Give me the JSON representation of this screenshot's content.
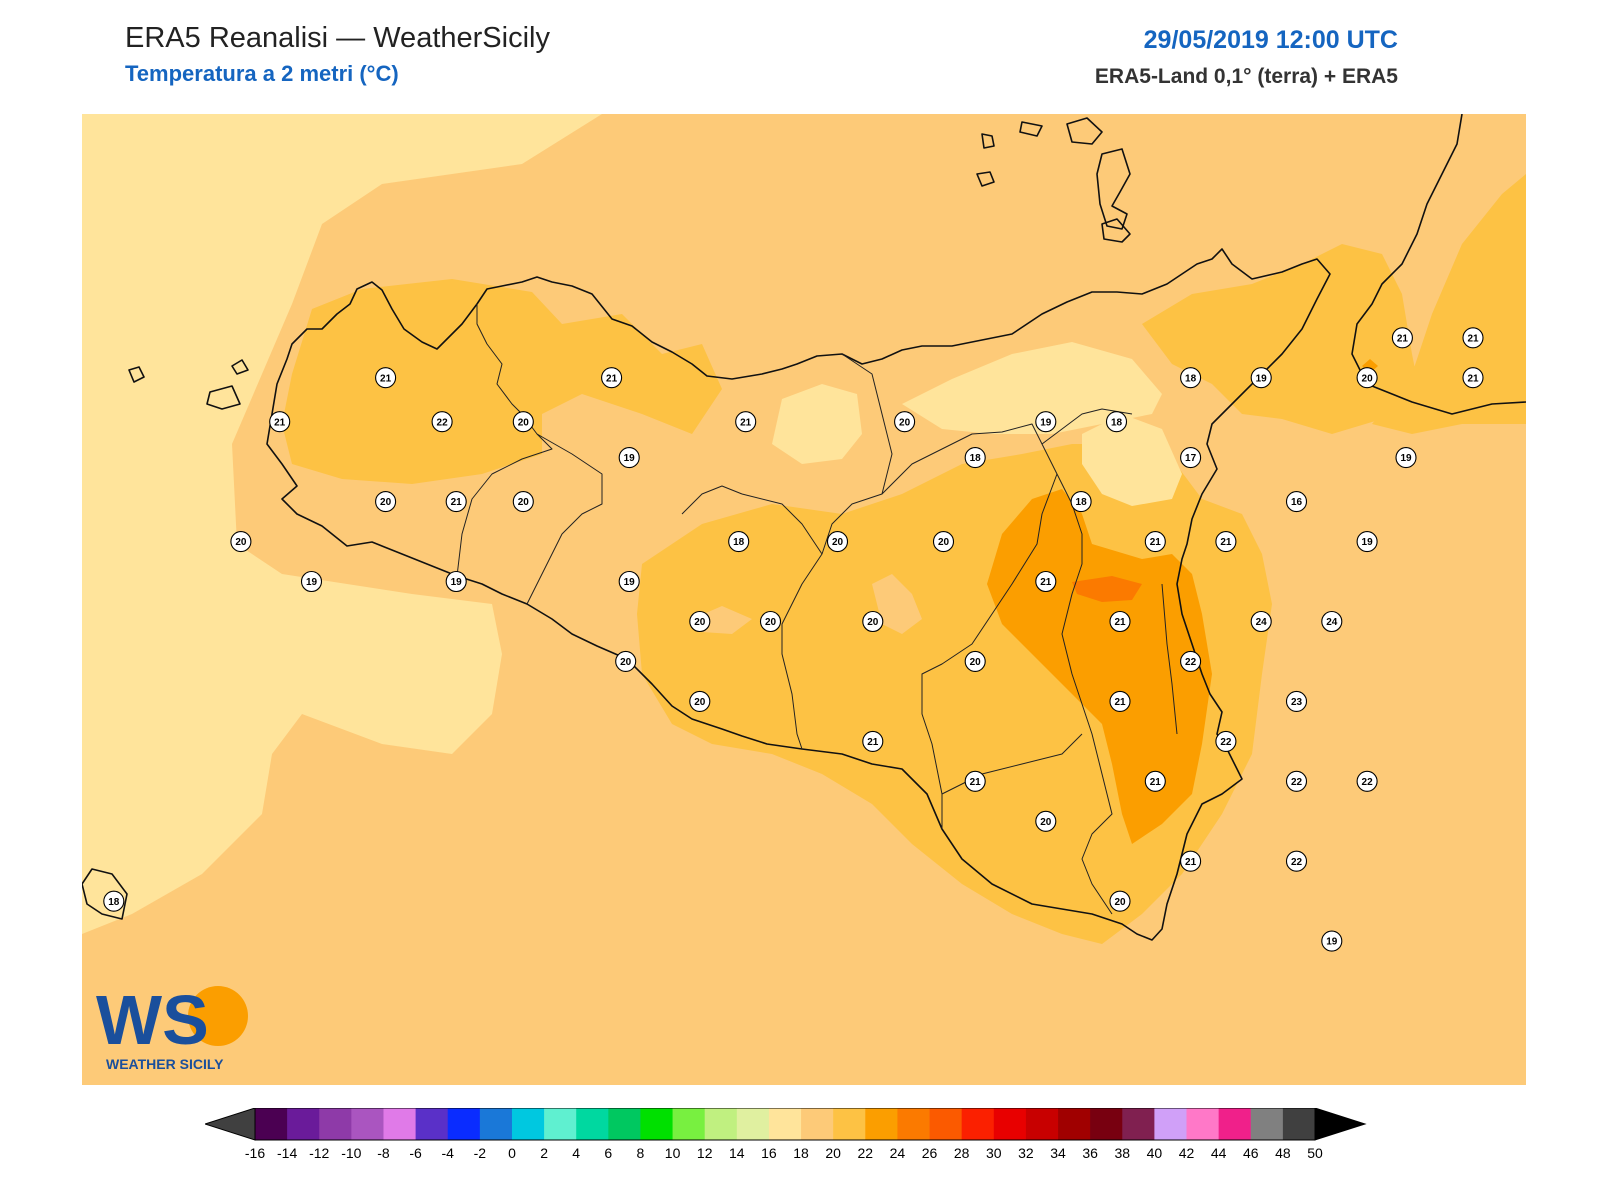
{
  "header": {
    "title": "ERA5 Reanalisi — WeatherSicily",
    "subtitle": "Temperatura a 2 metri (°C)",
    "datetime": "29/05/2019 12:00 UTC",
    "source": "ERA5-Land 0,1° (terra) + ERA5"
  },
  "logo": {
    "letters": "WS",
    "name": "WEATHER SICILY",
    "icon": "sun-wave-logo"
  },
  "colorbar": {
    "ticks": [
      "-16",
      "-14",
      "-12",
      "-10",
      "-8",
      "-6",
      "-4",
      "-2",
      "0",
      "2",
      "4",
      "6",
      "8",
      "10",
      "12",
      "14",
      "16",
      "18",
      "20",
      "22",
      "24",
      "26",
      "28",
      "30",
      "32",
      "34",
      "36",
      "38",
      "40",
      "42",
      "44",
      "46",
      "48",
      "50"
    ],
    "colors": [
      "#4b0052",
      "#6a1b9a",
      "#8e3aa8",
      "#aa55c0",
      "#e07ae8",
      "#5a30c8",
      "#0a2cff",
      "#1a78d8",
      "#00c8e0",
      "#5ff0d0",
      "#00d8a0",
      "#00c860",
      "#00e000",
      "#78f040",
      "#c0f080",
      "#e0f0a0",
      "#ffe49b",
      "#fdca78",
      "#fdc244",
      "#fb9e00",
      "#fb7a00",
      "#fb5a00",
      "#fb2000",
      "#e80000",
      "#c80000",
      "#a00000",
      "#780010",
      "#802050",
      "#d0a0f8",
      "#ff78c8",
      "#f0208a",
      "#808080",
      "#404040"
    ],
    "under_color": "#404040",
    "over_color": "#000000"
  },
  "field_colors": {
    "t16_18": "#ffe49b",
    "t18_20": "#fdca78",
    "t20_22": "#fdc244",
    "t22_24": "#fb9e00",
    "t24_26": "#fb7a00"
  },
  "stations": [
    {
      "label": "21",
      "lon": 12.72,
      "lat": 38.19
    },
    {
      "label": "21",
      "lon": 12.42,
      "lat": 38.08
    },
    {
      "label": "22",
      "lon": 12.88,
      "lat": 38.08
    },
    {
      "label": "20",
      "lon": 13.11,
      "lat": 38.08
    },
    {
      "label": "21",
      "lon": 13.36,
      "lat": 38.19
    },
    {
      "label": "19",
      "lon": 13.41,
      "lat": 37.99
    },
    {
      "label": "21",
      "lon": 13.74,
      "lat": 38.08
    },
    {
      "label": "20",
      "lon": 14.19,
      "lat": 38.08
    },
    {
      "label": "19",
      "lon": 14.59,
      "lat": 38.08
    },
    {
      "label": "18",
      "lon": 14.79,
      "lat": 38.08
    },
    {
      "label": "18",
      "lon": 15.0,
      "lat": 38.19
    },
    {
      "label": "19",
      "lon": 15.2,
      "lat": 38.19
    },
    {
      "label": "20",
      "lon": 15.5,
      "lat": 38.19
    },
    {
      "label": "21",
      "lon": 15.6,
      "lat": 38.29
    },
    {
      "label": "21",
      "lon": 15.8,
      "lat": 38.29
    },
    {
      "label": "21",
      "lon": 15.8,
      "lat": 38.19
    },
    {
      "label": "18",
      "lon": 14.39,
      "lat": 37.99
    },
    {
      "label": "17",
      "lon": 15.0,
      "lat": 37.99
    },
    {
      "label": "19",
      "lon": 15.61,
      "lat": 37.99
    },
    {
      "label": "20",
      "lon": 12.72,
      "lat": 37.88
    },
    {
      "label": "21",
      "lon": 12.92,
      "lat": 37.88
    },
    {
      "label": "20",
      "lon": 13.11,
      "lat": 37.88
    },
    {
      "label": "18",
      "lon": 14.69,
      "lat": 37.88
    },
    {
      "label": "16",
      "lon": 15.3,
      "lat": 37.88
    },
    {
      "label": "20",
      "lon": 12.31,
      "lat": 37.78
    },
    {
      "label": "18",
      "lon": 13.72,
      "lat": 37.78
    },
    {
      "label": "20",
      "lon": 14.0,
      "lat": 37.78
    },
    {
      "label": "20",
      "lon": 14.3,
      "lat": 37.78
    },
    {
      "label": "21",
      "lon": 14.9,
      "lat": 37.78
    },
    {
      "label": "21",
      "lon": 15.1,
      "lat": 37.78
    },
    {
      "label": "19",
      "lon": 15.5,
      "lat": 37.78
    },
    {
      "label": "19",
      "lon": 12.51,
      "lat": 37.68
    },
    {
      "label": "19",
      "lon": 12.92,
      "lat": 37.68
    },
    {
      "label": "19",
      "lon": 13.41,
      "lat": 37.68
    },
    {
      "label": "21",
      "lon": 14.59,
      "lat": 37.68
    },
    {
      "label": "20",
      "lon": 13.61,
      "lat": 37.58
    },
    {
      "label": "20",
      "lon": 13.81,
      "lat": 37.58
    },
    {
      "label": "20",
      "lon": 14.1,
      "lat": 37.58
    },
    {
      "label": "21",
      "lon": 14.8,
      "lat": 37.58
    },
    {
      "label": "24",
      "lon": 15.2,
      "lat": 37.58
    },
    {
      "label": "24",
      "lon": 15.4,
      "lat": 37.58
    },
    {
      "label": "20",
      "lon": 13.4,
      "lat": 37.48
    },
    {
      "label": "20",
      "lon": 14.39,
      "lat": 37.48
    },
    {
      "label": "22",
      "lon": 15.0,
      "lat": 37.48
    },
    {
      "label": "20",
      "lon": 13.61,
      "lat": 37.38
    },
    {
      "label": "21",
      "lon": 14.8,
      "lat": 37.38
    },
    {
      "label": "23",
      "lon": 15.3,
      "lat": 37.38
    },
    {
      "label": "21",
      "lon": 14.1,
      "lat": 37.28
    },
    {
      "label": "22",
      "lon": 15.1,
      "lat": 37.28
    },
    {
      "label": "21",
      "lon": 14.39,
      "lat": 37.18
    },
    {
      "label": "21",
      "lon": 14.9,
      "lat": 37.18
    },
    {
      "label": "22",
      "lon": 15.3,
      "lat": 37.18
    },
    {
      "label": "22",
      "lon": 15.5,
      "lat": 37.18
    },
    {
      "label": "20",
      "lon": 14.59,
      "lat": 37.08
    },
    {
      "label": "21",
      "lon": 15.0,
      "lat": 36.98
    },
    {
      "label": "22",
      "lon": 15.3,
      "lat": 36.98
    },
    {
      "label": "20",
      "lon": 14.8,
      "lat": 36.88
    },
    {
      "label": "19",
      "lon": 15.4,
      "lat": 36.78
    },
    {
      "label": "18",
      "lon": 11.95,
      "lat": 36.88
    }
  ]
}
